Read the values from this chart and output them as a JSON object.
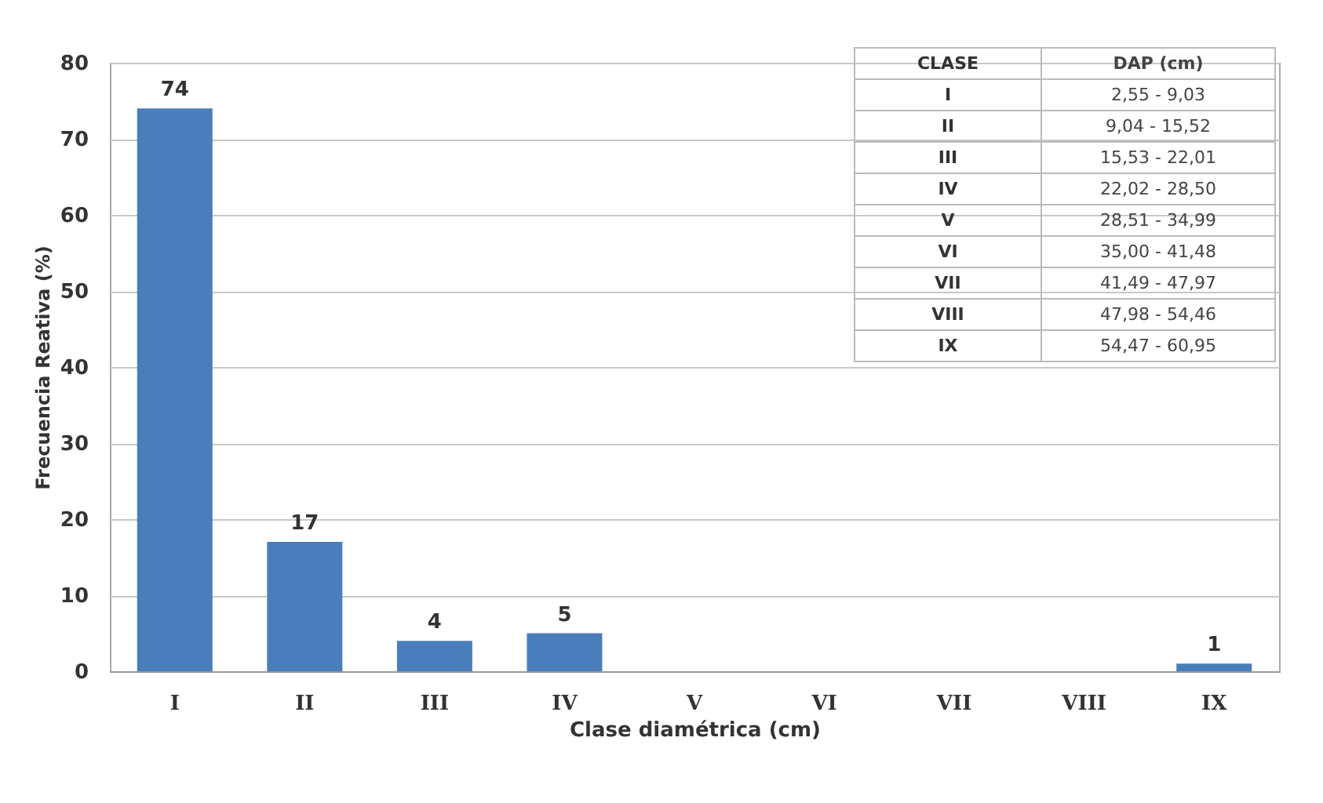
{
  "chart_data": {
    "type": "bar",
    "xlabel": "Clase diamétrica (cm)",
    "ylabel": "Frecuencia Reativa (%)",
    "categories": [
      "I",
      "II",
      "III",
      "IV",
      "V",
      "VI",
      "VII",
      "VIII",
      "IX"
    ],
    "values": [
      74,
      17,
      4,
      5,
      0,
      0,
      0,
      0,
      1
    ],
    "value_labels": [
      "74",
      "17",
      "4",
      "5",
      null,
      null,
      null,
      null,
      "1"
    ],
    "color": "#4a7ebb",
    "ylim": [
      0,
      80
    ],
    "yticks": [
      0,
      10,
      20,
      30,
      40,
      50,
      60,
      70,
      80
    ],
    "grid": "y",
    "annotations": [
      "CLASE",
      "DAP (cm)",
      "I",
      "2,55 - 9,03",
      "II",
      "9,04 - 15,52",
      "III",
      "15,53 - 22,01",
      "IV",
      "22,02 - 28,50",
      "V",
      "28,51 - 34,99",
      "VI",
      "35,00 - 41,48",
      "VII",
      "41,49 - 47,97",
      "VIII",
      "47,98 - 54,46",
      "IX",
      "54,47 - 60,95"
    ]
  }
}
